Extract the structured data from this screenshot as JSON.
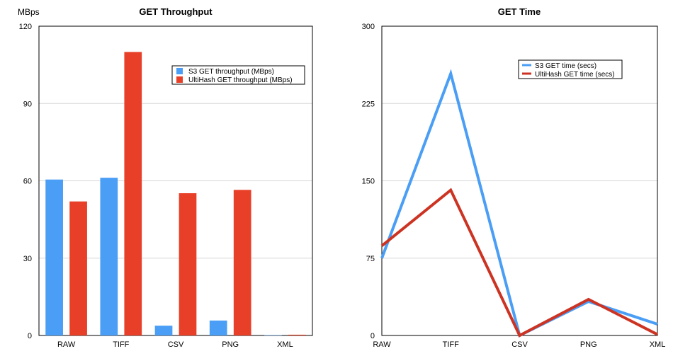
{
  "chart_data": [
    {
      "type": "bar",
      "title": "GET Throughput",
      "ylabel": "MBps",
      "xlabel": "",
      "ylim": [
        0,
        120
      ],
      "yticks": [
        0,
        30,
        60,
        90,
        120
      ],
      "grid": true,
      "legend_position": "top-right",
      "categories": [
        "RAW",
        "TIFF",
        "CSV",
        "PNG",
        "XML"
      ],
      "series": [
        {
          "name": "S3 GET throughput (MBps)",
          "color": "#4a9ef5",
          "values": [
            60.5,
            61.2,
            3.8,
            5.8,
            0
          ]
        },
        {
          "name": "UltiHash GET throughput (MBps)",
          "color": "#e84028",
          "values": [
            52,
            110,
            55.2,
            56.5,
            0.3
          ]
        }
      ]
    },
    {
      "type": "line",
      "title": "GET Time",
      "ylabel": "",
      "xlabel": "",
      "ylim": [
        0,
        300
      ],
      "yticks": [
        0,
        75,
        150,
        225,
        300
      ],
      "grid": true,
      "legend_position": "top-right",
      "categories": [
        "RAW",
        "TIFF",
        "CSV",
        "PNG",
        "XML"
      ],
      "series": [
        {
          "name": "S3 GET time (secs)",
          "color": "#4a9ef5",
          "values": [
            75,
            254,
            0,
            33,
            11
          ]
        },
        {
          "name": "UltiHash GET time (secs)",
          "color": "#cc3322",
          "values": [
            87,
            141,
            0,
            35,
            1
          ]
        }
      ]
    }
  ]
}
